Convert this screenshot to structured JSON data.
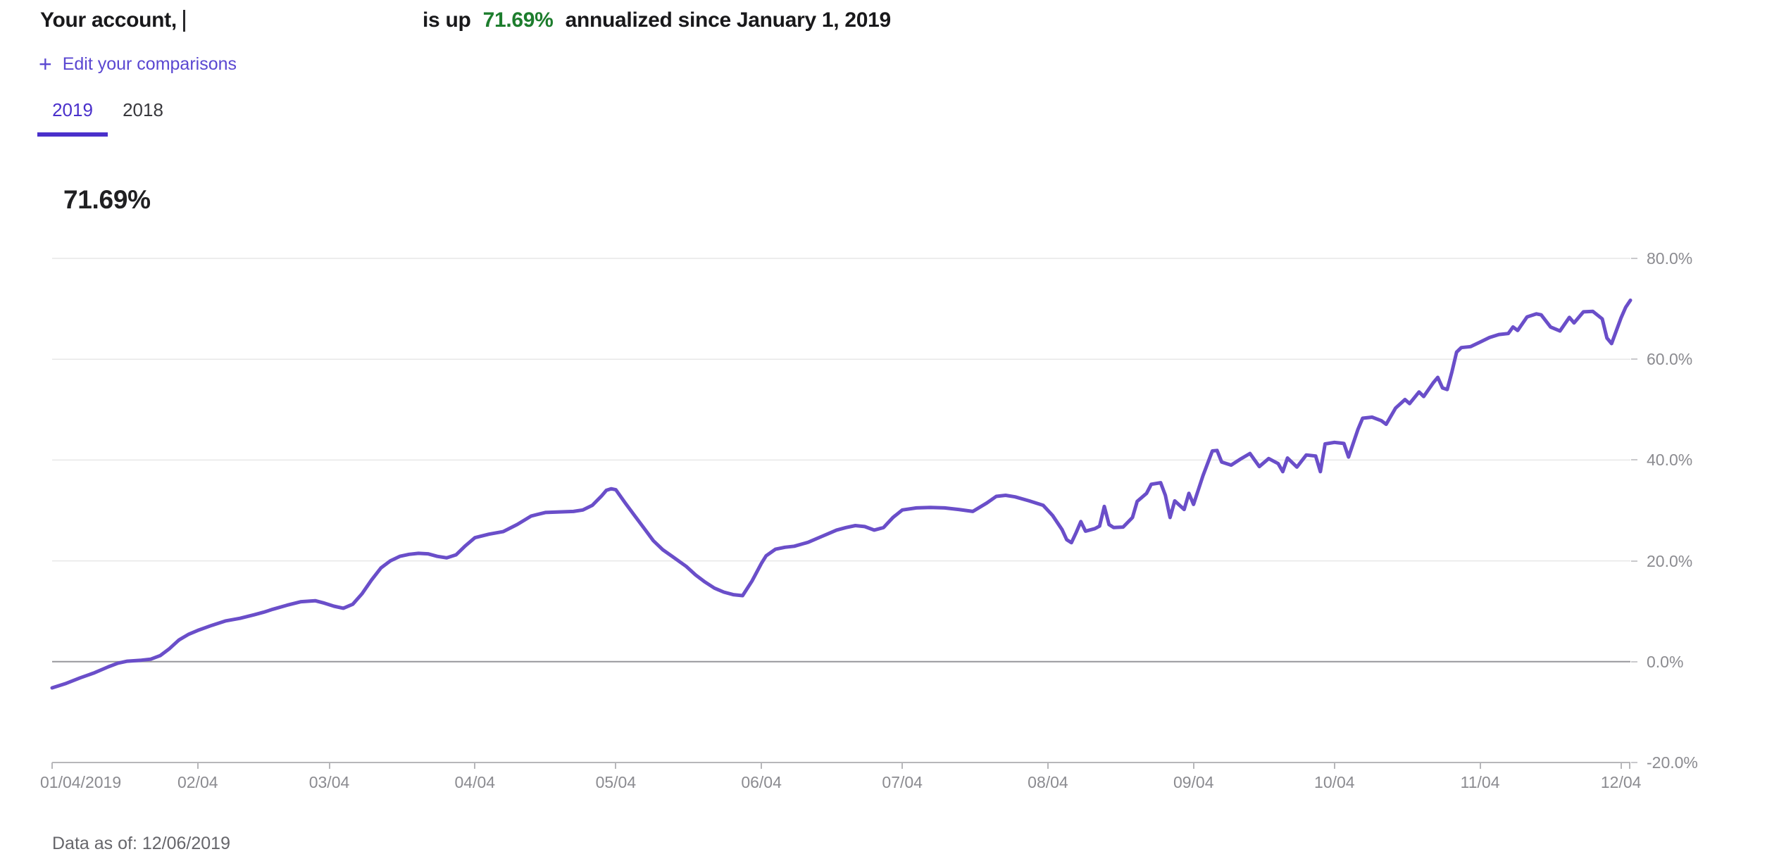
{
  "header": {
    "account_prefix": "Your account,",
    "performance_text_prefix": "is up",
    "performance_value": "71.69%",
    "performance_text_suffix": "annualized since January 1, 2019"
  },
  "edit_comparisons": {
    "plus": "+",
    "label": "Edit your comparisons"
  },
  "tabs": [
    {
      "label": "2019",
      "active": true
    },
    {
      "label": "2018",
      "active": false
    }
  ],
  "summary": {
    "big_value": "71.69%"
  },
  "footer": {
    "data_as_of": "Data as of: 12/06/2019"
  },
  "colors": {
    "positive_green": "#1d7d2d",
    "link_purple": "#5a47d1",
    "active_tab_purple": "#4a30cb",
    "line_purple": "#6a4ec9",
    "gridline_gray": "#e7e7e7",
    "zero_line_gray": "#97979b",
    "axis_text_gray": "#8b8b90"
  },
  "chart_data": {
    "type": "line",
    "title": "Account performance since January 1, 2019 (%)",
    "final_value": 71.69,
    "x_axis": {
      "tick_labels": [
        "01/04/2019",
        "02/04",
        "03/04",
        "04/04",
        "05/04",
        "06/04",
        "07/04",
        "08/04",
        "09/04",
        "10/04",
        "11/04",
        "12/04"
      ],
      "tick_days": [
        0,
        31,
        59,
        90,
        120,
        151,
        181,
        212,
        243,
        273,
        304,
        334
      ],
      "total_days": 336
    },
    "y_axis": {
      "tick_labels": [
        "80.0%",
        "60.0%",
        "40.0%",
        "20.0%",
        "0.0%",
        "-20.0%"
      ],
      "tick_values": [
        80,
        60,
        40,
        20,
        0,
        -20
      ],
      "range": [
        -20,
        80
      ],
      "grid": true
    },
    "series": [
      {
        "name": "Your account",
        "color": "#6a4ec9",
        "points": [
          [
            0,
            -5.2
          ],
          [
            3,
            -4.3
          ],
          [
            6,
            -3.2
          ],
          [
            9,
            -2.2
          ],
          [
            12,
            -1.0
          ],
          [
            14,
            -0.3
          ],
          [
            16,
            0.1
          ],
          [
            19,
            0.3
          ],
          [
            21,
            0.5
          ],
          [
            23,
            1.2
          ],
          [
            25,
            2.6
          ],
          [
            27,
            4.3
          ],
          [
            29,
            5.4
          ],
          [
            31,
            6.2
          ],
          [
            34,
            7.2
          ],
          [
            37,
            8.1
          ],
          [
            40,
            8.6
          ],
          [
            43,
            9.3
          ],
          [
            45,
            9.8
          ],
          [
            47,
            10.4
          ],
          [
            50,
            11.2
          ],
          [
            53,
            11.9
          ],
          [
            56,
            12.1
          ],
          [
            58,
            11.6
          ],
          [
            60,
            11.0
          ],
          [
            62,
            10.6
          ],
          [
            64,
            11.4
          ],
          [
            66,
            13.5
          ],
          [
            68,
            16.2
          ],
          [
            70,
            18.6
          ],
          [
            72,
            20.0
          ],
          [
            74,
            20.9
          ],
          [
            76,
            21.3
          ],
          [
            78,
            21.5
          ],
          [
            80,
            21.4
          ],
          [
            82,
            20.9
          ],
          [
            84,
            20.6
          ],
          [
            86,
            21.2
          ],
          [
            88,
            23.0
          ],
          [
            90,
            24.6
          ],
          [
            93,
            25.3
          ],
          [
            96,
            25.8
          ],
          [
            99,
            27.2
          ],
          [
            102,
            28.9
          ],
          [
            105,
            29.6
          ],
          [
            108,
            29.7
          ],
          [
            111,
            29.8
          ],
          [
            113,
            30.1
          ],
          [
            115,
            31.0
          ],
          [
            117,
            32.9
          ],
          [
            118,
            34.0
          ],
          [
            119,
            34.3
          ],
          [
            120,
            34.1
          ],
          [
            122,
            31.5
          ],
          [
            124,
            29.0
          ],
          [
            126,
            26.5
          ],
          [
            128,
            24.0
          ],
          [
            130,
            22.2
          ],
          [
            132,
            20.9
          ],
          [
            135,
            18.9
          ],
          [
            137,
            17.2
          ],
          [
            139,
            15.8
          ],
          [
            141,
            14.6
          ],
          [
            143,
            13.8
          ],
          [
            145,
            13.3
          ],
          [
            147,
            13.1
          ],
          [
            149,
            16.0
          ],
          [
            151,
            19.5
          ],
          [
            152,
            21.0
          ],
          [
            154,
            22.3
          ],
          [
            156,
            22.7
          ],
          [
            158,
            22.9
          ],
          [
            161,
            23.7
          ],
          [
            164,
            24.9
          ],
          [
            167,
            26.1
          ],
          [
            169,
            26.6
          ],
          [
            171,
            27.0
          ],
          [
            173,
            26.8
          ],
          [
            175,
            26.1
          ],
          [
            177,
            26.6
          ],
          [
            179,
            28.6
          ],
          [
            181,
            30.1
          ],
          [
            184,
            30.5
          ],
          [
            187,
            30.6
          ],
          [
            190,
            30.5
          ],
          [
            193,
            30.2
          ],
          [
            196,
            29.8
          ],
          [
            199,
            31.5
          ],
          [
            201,
            32.8
          ],
          [
            203,
            33.0
          ],
          [
            205,
            32.7
          ],
          [
            208,
            31.9
          ],
          [
            211,
            31.0
          ],
          [
            213,
            29.0
          ],
          [
            215,
            26.2
          ],
          [
            216,
            24.2
          ],
          [
            217,
            23.6
          ],
          [
            218,
            25.6
          ],
          [
            219,
            27.8
          ],
          [
            220,
            25.9
          ],
          [
            222,
            26.4
          ],
          [
            223,
            26.9
          ],
          [
            224,
            30.8
          ],
          [
            225,
            27.2
          ],
          [
            226,
            26.6
          ],
          [
            228,
            26.7
          ],
          [
            230,
            28.6
          ],
          [
            231,
            31.8
          ],
          [
            233,
            33.4
          ],
          [
            234,
            35.2
          ],
          [
            236,
            35.5
          ],
          [
            237,
            33.0
          ],
          [
            238,
            28.6
          ],
          [
            239,
            31.9
          ],
          [
            241,
            30.2
          ],
          [
            242,
            33.4
          ],
          [
            243,
            31.2
          ],
          [
            245,
            36.9
          ],
          [
            247,
            41.8
          ],
          [
            248,
            41.9
          ],
          [
            249,
            39.6
          ],
          [
            251,
            39.0
          ],
          [
            253,
            40.2
          ],
          [
            255,
            41.3
          ],
          [
            257,
            38.7
          ],
          [
            259,
            40.3
          ],
          [
            261,
            39.3
          ],
          [
            262,
            37.7
          ],
          [
            263,
            40.4
          ],
          [
            265,
            38.6
          ],
          [
            267,
            41.0
          ],
          [
            269,
            40.8
          ],
          [
            270,
            37.7
          ],
          [
            271,
            43.2
          ],
          [
            273,
            43.5
          ],
          [
            275,
            43.3
          ],
          [
            276,
            40.6
          ],
          [
            278,
            46.1
          ],
          [
            279,
            48.3
          ],
          [
            281,
            48.5
          ],
          [
            283,
            47.8
          ],
          [
            284,
            47.1
          ],
          [
            286,
            50.3
          ],
          [
            288,
            52.0
          ],
          [
            289,
            51.2
          ],
          [
            291,
            53.5
          ],
          [
            292,
            52.6
          ],
          [
            294,
            55.3
          ],
          [
            295,
            56.4
          ],
          [
            296,
            54.3
          ],
          [
            297,
            54.0
          ],
          [
            298,
            57.5
          ],
          [
            299,
            61.4
          ],
          [
            300,
            62.3
          ],
          [
            302,
            62.5
          ],
          [
            304,
            63.4
          ],
          [
            306,
            64.3
          ],
          [
            308,
            64.9
          ],
          [
            310,
            65.1
          ],
          [
            311,
            66.4
          ],
          [
            312,
            65.7
          ],
          [
            314,
            68.4
          ],
          [
            316,
            69.0
          ],
          [
            317,
            68.8
          ],
          [
            319,
            66.4
          ],
          [
            321,
            65.6
          ],
          [
            323,
            68.3
          ],
          [
            324,
            67.2
          ],
          [
            326,
            69.4
          ],
          [
            328,
            69.5
          ],
          [
            330,
            68.0
          ],
          [
            331,
            64.2
          ],
          [
            332,
            63.1
          ],
          [
            334,
            68.2
          ],
          [
            335,
            70.3
          ],
          [
            336,
            71.69
          ]
        ]
      }
    ]
  }
}
